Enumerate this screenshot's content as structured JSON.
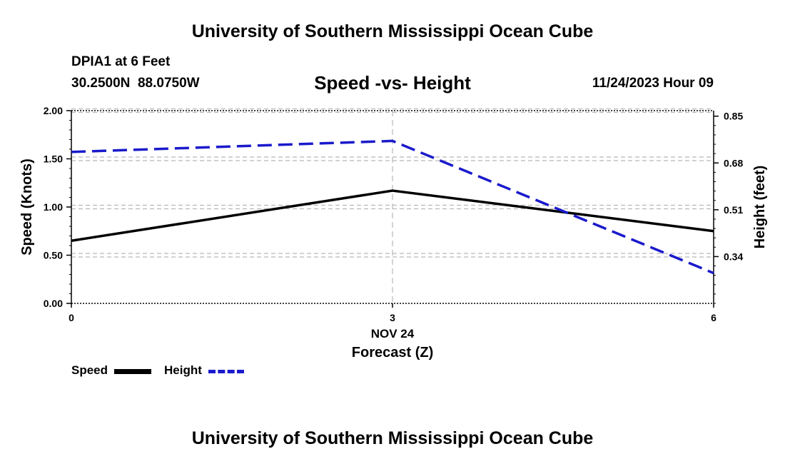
{
  "header": {
    "title": "University of Southern Mississippi Ocean Cube",
    "station": "DPIA1 at 6 Feet",
    "coords": "30.2500N  88.0750W",
    "date": "11/24/2023 Hour 09"
  },
  "footer": {
    "title": "University of Southern Mississippi Ocean Cube"
  },
  "chart_data": {
    "type": "line",
    "title": "Speed -vs- Height",
    "xlabel": "Forecast (Z)",
    "x_date_label": "NOV 24",
    "ylabel_left": "Speed (Knots)",
    "ylabel_right": "Height (feet)",
    "x": [
      0,
      3,
      6
    ],
    "x_ticks": [
      "0",
      "3",
      "6"
    ],
    "xlim": [
      0,
      6
    ],
    "ylim_left": [
      0,
      2
    ],
    "ylim_right": [
      0.17,
      0.87
    ],
    "left_ticks": [
      "0.00",
      "0.50",
      "1.00",
      "1.50",
      "2.00"
    ],
    "left_tick_values": [
      0,
      0.5,
      1.0,
      1.5,
      2.0
    ],
    "right_ticks": [
      "0.34",
      "0.51",
      "0.68",
      "0.85"
    ],
    "right_tick_values": [
      0.34,
      0.51,
      0.68,
      0.85
    ],
    "series": [
      {
        "name": "Speed",
        "axis": "left",
        "color": "#000000",
        "style": "solid",
        "values": [
          0.65,
          1.17,
          0.75
        ]
      },
      {
        "name": "Height",
        "axis": "right",
        "color": "#1a1acc",
        "style": "dashed",
        "values": [
          0.72,
          0.76,
          0.28
        ]
      }
    ],
    "legend": [
      "Speed",
      "Height"
    ]
  }
}
